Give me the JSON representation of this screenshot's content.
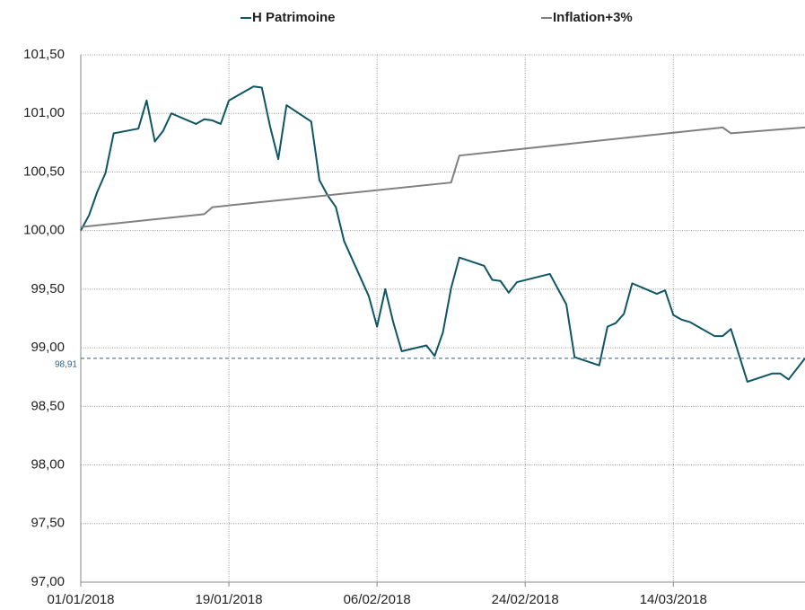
{
  "chart_data": {
    "type": "line",
    "legend": "top",
    "grid": true,
    "xlim": [
      "2018-01-01",
      "2018-03-30"
    ],
    "xticks": [
      {
        "value": "2018-01-01",
        "label": "01/01/2018"
      },
      {
        "value": "2018-01-19",
        "label": "19/01/2018"
      },
      {
        "value": "2018-02-06",
        "label": "06/02/2018"
      },
      {
        "value": "2018-02-24",
        "label": "24/02/2018"
      },
      {
        "value": "2018-03-14",
        "label": "14/03/2018"
      }
    ],
    "ylim": [
      97,
      101.5
    ],
    "yticks": [
      {
        "value": 97,
        "label": "97,00"
      },
      {
        "value": 97.5,
        "label": "97,50"
      },
      {
        "value": 98,
        "label": "98,00"
      },
      {
        "value": 98.5,
        "label": "98,50"
      },
      {
        "value": 99,
        "label": "99,00"
      },
      {
        "value": 99.5,
        "label": "99,50"
      },
      {
        "value": 100,
        "label": "100,00"
      },
      {
        "value": 100.5,
        "label": "100,50"
      },
      {
        "value": 101,
        "label": "101,00"
      },
      {
        "value": 101.5,
        "label": "101,50"
      }
    ],
    "annotations": [
      {
        "value": 98.91,
        "label": "98,91",
        "color": "#2f5f8a"
      }
    ],
    "series": [
      {
        "name": "H Patrimoine",
        "color": "#0e5566",
        "x": [
          "2018-01-01",
          "2018-01-02",
          "2018-01-03",
          "2018-01-04",
          "2018-01-05",
          "2018-01-08",
          "2018-01-09",
          "2018-01-10",
          "2018-01-11",
          "2018-01-12",
          "2018-01-15",
          "2018-01-16",
          "2018-01-17",
          "2018-01-18",
          "2018-01-19",
          "2018-01-22",
          "2018-01-23",
          "2018-01-24",
          "2018-01-25",
          "2018-01-26",
          "2018-01-29",
          "2018-01-30",
          "2018-01-31",
          "2018-02-01",
          "2018-02-02",
          "2018-02-05",
          "2018-02-06",
          "2018-02-07",
          "2018-02-08",
          "2018-02-09",
          "2018-02-12",
          "2018-02-13",
          "2018-02-14",
          "2018-02-15",
          "2018-02-16",
          "2018-02-19",
          "2018-02-20",
          "2018-02-21",
          "2018-02-22",
          "2018-02-23",
          "2018-02-27",
          "2018-03-01",
          "2018-03-02",
          "2018-03-05",
          "2018-03-06",
          "2018-03-07",
          "2018-03-08",
          "2018-03-09",
          "2018-03-12",
          "2018-03-13",
          "2018-03-14",
          "2018-03-15",
          "2018-03-16",
          "2018-03-19",
          "2018-03-20",
          "2018-03-21",
          "2018-03-23",
          "2018-03-26",
          "2018-03-27",
          "2018-03-28",
          "2018-03-30"
        ],
        "values": [
          100.0,
          100.13,
          100.33,
          100.49,
          100.83,
          100.87,
          101.11,
          100.76,
          100.85,
          101.0,
          100.91,
          100.95,
          100.94,
          100.91,
          101.11,
          101.23,
          101.22,
          100.89,
          100.61,
          101.07,
          100.93,
          100.43,
          100.3,
          100.2,
          99.91,
          99.44,
          99.18,
          99.5,
          99.21,
          98.97,
          99.02,
          98.93,
          99.13,
          99.51,
          99.77,
          99.7,
          99.58,
          99.57,
          99.47,
          99.56,
          99.63,
          99.37,
          98.92,
          98.85,
          99.18,
          99.21,
          99.29,
          99.55,
          99.46,
          99.49,
          99.28,
          99.24,
          99.22,
          99.1,
          99.1,
          99.16,
          98.71,
          98.78,
          98.78,
          98.73,
          98.91
        ]
      },
      {
        "name": "Inflation+3%",
        "color": "#808080",
        "x": [
          "2018-01-01",
          "2018-01-16",
          "2018-01-17",
          "2018-02-15",
          "2018-02-16",
          "2018-03-20",
          "2018-03-21",
          "2018-03-30"
        ],
        "values": [
          100.03,
          100.14,
          100.2,
          100.41,
          100.64,
          100.88,
          100.83,
          100.88
        ]
      }
    ]
  }
}
